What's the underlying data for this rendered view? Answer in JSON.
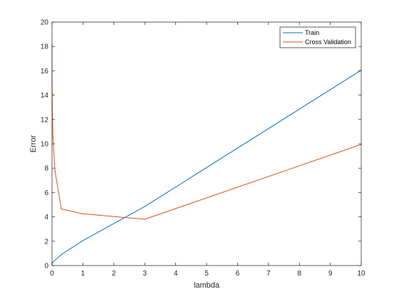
{
  "chart_data": {
    "type": "line",
    "xlabel": "lambda",
    "ylabel": "Error",
    "xlim": [
      0,
      10
    ],
    "ylim": [
      0,
      20
    ],
    "xticks": [
      0,
      1,
      2,
      3,
      4,
      5,
      6,
      7,
      8,
      9,
      10
    ],
    "yticks": [
      0,
      2,
      4,
      6,
      8,
      10,
      12,
      14,
      16,
      18,
      20
    ],
    "grid": false,
    "legend_position": "top-right",
    "x": [
      0,
      0.001,
      0.003,
      0.01,
      0.03,
      0.1,
      0.3,
      1,
      3,
      10
    ],
    "series": [
      {
        "name": "Train",
        "color": "#0072BD",
        "values": [
          0.1,
          0.15,
          0.18,
          0.22,
          0.28,
          0.45,
          0.9,
          2.05,
          4.85,
          16.05
        ]
      },
      {
        "name": "Cross Validation",
        "color": "#D95319",
        "values": [
          18.2,
          16.0,
          14.6,
          12.9,
          10.5,
          7.7,
          4.65,
          4.25,
          3.8,
          9.95
        ]
      }
    ]
  }
}
